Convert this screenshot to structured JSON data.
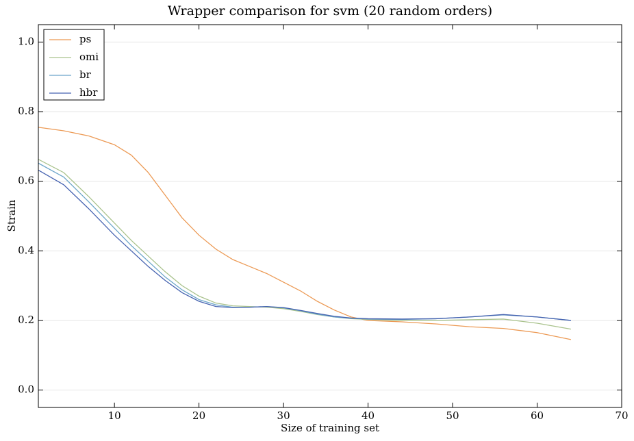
{
  "chart_data": {
    "type": "line",
    "title": "Wrapper comparison for svm (20 random orders)",
    "x_label": "Size of training set",
    "y_label": "Strain",
    "x": [
      1,
      4,
      7,
      10,
      12,
      14,
      16,
      18,
      20,
      22,
      24,
      26,
      28,
      30,
      32,
      34,
      36,
      38,
      40,
      44,
      48,
      52,
      56,
      60,
      64
    ],
    "series": [
      {
        "name": "ps",
        "color": "#ec9a55",
        "values": [
          0.755,
          0.745,
          0.73,
          0.705,
          0.675,
          0.625,
          0.56,
          0.495,
          0.445,
          0.405,
          0.375,
          0.355,
          0.335,
          0.31,
          0.285,
          0.255,
          0.23,
          0.21,
          0.2,
          0.196,
          0.19,
          0.182,
          0.177,
          0.165,
          0.145
        ]
      },
      {
        "name": "omi",
        "color": "#a9c28c",
        "values": [
          0.663,
          0.625,
          0.555,
          0.48,
          0.43,
          0.385,
          0.34,
          0.3,
          0.27,
          0.25,
          0.242,
          0.24,
          0.238,
          0.234,
          0.226,
          0.217,
          0.21,
          0.205,
          0.203,
          0.2,
          0.2,
          0.202,
          0.204,
          0.192,
          0.175
        ]
      },
      {
        "name": "br",
        "color": "#6ba5c9",
        "values": [
          0.652,
          0.612,
          0.54,
          0.465,
          0.415,
          0.37,
          0.325,
          0.288,
          0.26,
          0.245,
          0.238,
          0.238,
          0.24,
          0.236,
          0.228,
          0.218,
          0.21,
          0.206,
          0.204,
          0.203,
          0.205,
          0.21,
          0.216,
          0.21,
          0.2
        ]
      },
      {
        "name": "hbr",
        "color": "#4562b0",
        "values": [
          0.632,
          0.59,
          0.52,
          0.445,
          0.4,
          0.355,
          0.315,
          0.28,
          0.255,
          0.24,
          0.237,
          0.238,
          0.24,
          0.237,
          0.229,
          0.22,
          0.212,
          0.207,
          0.205,
          0.204,
          0.205,
          0.21,
          0.217,
          0.21,
          0.2
        ]
      }
    ],
    "xlim": [
      1,
      70
    ],
    "ylim": [
      -0.05,
      1.05
    ],
    "xticks": [
      10,
      20,
      30,
      40,
      50,
      60,
      70
    ],
    "yticks": [
      {
        "value": 0,
        "label": "0.0"
      },
      {
        "value": 0.2,
        "label": "0.2"
      },
      {
        "value": 0.4,
        "label": "0.4"
      },
      {
        "value": 0.6,
        "label": "0.6"
      },
      {
        "value": 0.8,
        "label": "0.8"
      },
      {
        "value": 1,
        "label": "1.0"
      }
    ],
    "grid": "y",
    "legend": "upper-left"
  }
}
